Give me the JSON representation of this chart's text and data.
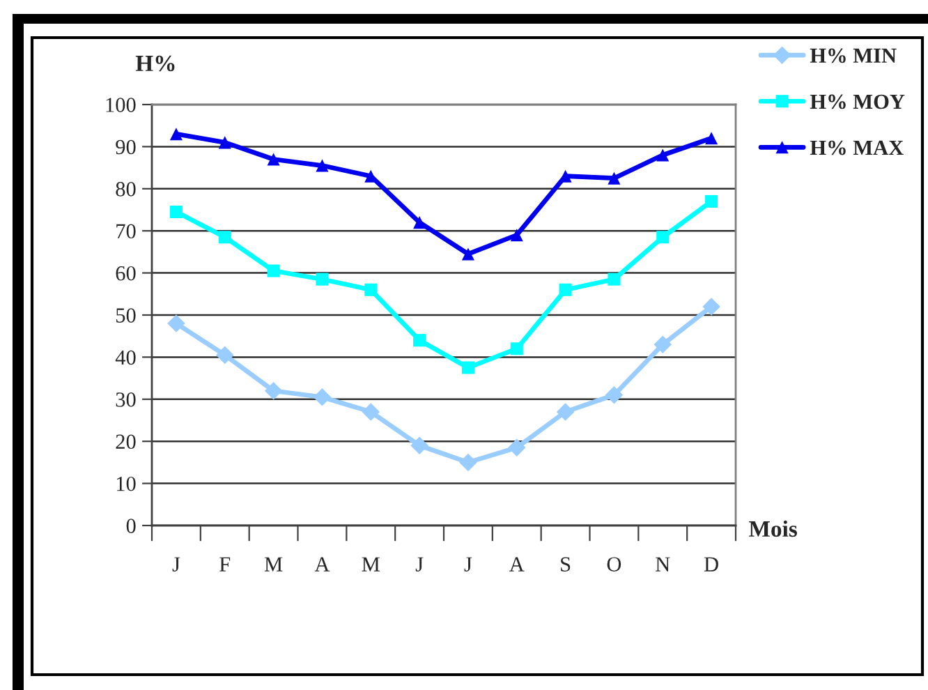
{
  "chart_data": {
    "type": "line",
    "xlabel": "Mois",
    "ylabel": "H%",
    "categories": [
      "J",
      "F",
      "M",
      "A",
      "M",
      "J",
      "J",
      "A",
      "S",
      "O",
      "N",
      "D"
    ],
    "series": [
      {
        "name": "H% MIN",
        "color": "#99ccff",
        "marker": "diamond",
        "values": [
          48,
          40.5,
          32,
          30.5,
          27,
          19,
          15,
          18.5,
          27,
          31,
          43,
          52
        ]
      },
      {
        "name": "H% MOY",
        "color": "#00ffff",
        "marker": "square",
        "values": [
          74.5,
          68.5,
          60.5,
          58.5,
          56,
          44,
          37.5,
          42,
          56,
          58.5,
          68.5,
          77
        ]
      },
      {
        "name": "H% MAX",
        "color": "#0000ee",
        "marker": "triangle",
        "values": [
          93,
          91,
          87,
          85.5,
          83,
          72,
          64.5,
          69,
          83,
          82.5,
          88,
          92
        ]
      }
    ],
    "ylim": [
      0,
      100
    ],
    "yticks": [
      0,
      10,
      20,
      30,
      40,
      50,
      60,
      70,
      80,
      90,
      100
    ],
    "grid": "y",
    "legend": "top right"
  }
}
